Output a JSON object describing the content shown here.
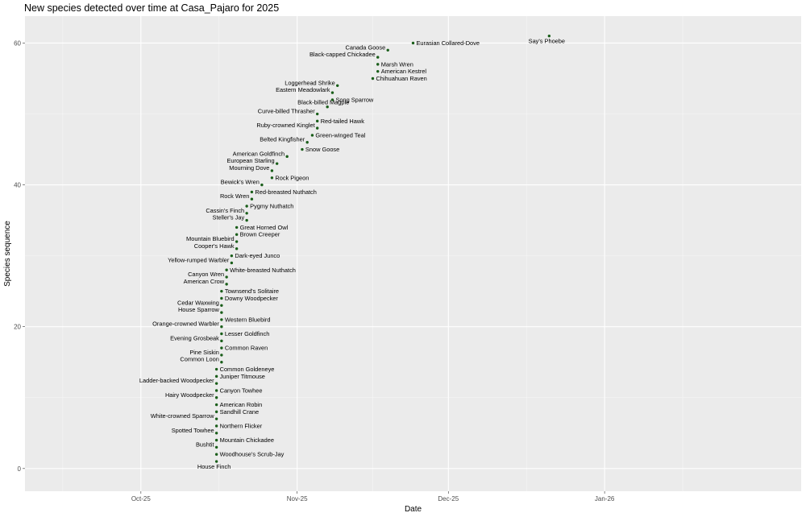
{
  "chart_data": {
    "type": "scatter",
    "title": "New species detected over time at Casa_Pajaro for 2025",
    "xlabel": "Date",
    "ylabel": "Species sequence",
    "xlim": [
      "2025-09-08",
      "2026-02-09"
    ],
    "ylim": [
      -3.2,
      63.8
    ],
    "x_tick_labels": [
      "Oct-25",
      "Nov-25",
      "Dec-25",
      "Jan-26"
    ],
    "x_tick_dates": [
      "2025-10-01",
      "2025-11-01",
      "2025-12-01",
      "2026-01-01"
    ],
    "y_ticks": [
      0,
      20,
      40,
      60
    ],
    "grid": true,
    "background": "#ebebeb",
    "point_color": "#1a5e1a",
    "points": [
      {
        "y": 1,
        "date": "2025-10-16",
        "label": "House Finch",
        "side": "below"
      },
      {
        "y": 2,
        "date": "2025-10-16",
        "label": "Woodhouse's Scrub-Jay",
        "side": "right"
      },
      {
        "y": 3,
        "date": "2025-10-16",
        "label": "Bushtit",
        "side": "left"
      },
      {
        "y": 4,
        "date": "2025-10-16",
        "label": "Mountain Chickadee",
        "side": "right"
      },
      {
        "y": 5,
        "date": "2025-10-16",
        "label": "Spotted Towhee",
        "side": "left"
      },
      {
        "y": 6,
        "date": "2025-10-16",
        "label": "Northern Flicker",
        "side": "right"
      },
      {
        "y": 7,
        "date": "2025-10-16",
        "label": "White-crowned Sparrow",
        "side": "left"
      },
      {
        "y": 8,
        "date": "2025-10-16",
        "label": "Sandhill Crane",
        "side": "right"
      },
      {
        "y": 9,
        "date": "2025-10-16",
        "label": "American Robin",
        "side": "right"
      },
      {
        "y": 10,
        "date": "2025-10-16",
        "label": "Hairy Woodpecker",
        "side": "left"
      },
      {
        "y": 11,
        "date": "2025-10-16",
        "label": "Canyon Towhee",
        "side": "right"
      },
      {
        "y": 12,
        "date": "2025-10-16",
        "label": "Ladder-backed Woodpecker",
        "side": "left"
      },
      {
        "y": 13,
        "date": "2025-10-16",
        "label": "Juniper Titmouse",
        "side": "right"
      },
      {
        "y": 14,
        "date": "2025-10-16",
        "label": "Common Goldeneye",
        "side": "right"
      },
      {
        "y": 15,
        "date": "2025-10-17",
        "label": "Common Loon",
        "side": "left"
      },
      {
        "y": 16,
        "date": "2025-10-17",
        "label": "Pine Siskin",
        "side": "left"
      },
      {
        "y": 17,
        "date": "2025-10-17",
        "label": "Common Raven",
        "side": "right"
      },
      {
        "y": 18,
        "date": "2025-10-17",
        "label": "Evening Grosbeak",
        "side": "left"
      },
      {
        "y": 19,
        "date": "2025-10-17",
        "label": "Lesser Goldfinch",
        "side": "right"
      },
      {
        "y": 20,
        "date": "2025-10-17",
        "label": "Orange-crowned Warbler",
        "side": "left"
      },
      {
        "y": 21,
        "date": "2025-10-17",
        "label": "Western Bluebird",
        "side": "right"
      },
      {
        "y": 22,
        "date": "2025-10-17",
        "label": "House Sparrow",
        "side": "left"
      },
      {
        "y": 23,
        "date": "2025-10-17",
        "label": "Cedar Waxwing",
        "side": "left"
      },
      {
        "y": 24,
        "date": "2025-10-17",
        "label": "Downy Woodpecker",
        "side": "right"
      },
      {
        "y": 25,
        "date": "2025-10-17",
        "label": "Townsend's Solitaire",
        "side": "right"
      },
      {
        "y": 26,
        "date": "2025-10-18",
        "label": "American Crow",
        "side": "left"
      },
      {
        "y": 27,
        "date": "2025-10-18",
        "label": "Canyon Wren",
        "side": "left"
      },
      {
        "y": 28,
        "date": "2025-10-18",
        "label": "White-breasted Nuthatch",
        "side": "right"
      },
      {
        "y": 29,
        "date": "2025-10-19",
        "label": "Yellow-rumped Warbler",
        "side": "left"
      },
      {
        "y": 30,
        "date": "2025-10-19",
        "label": "Dark-eyed Junco",
        "side": "right"
      },
      {
        "y": 31,
        "date": "2025-10-20",
        "label": "Cooper's Hawk",
        "side": "left"
      },
      {
        "y": 32,
        "date": "2025-10-20",
        "label": "Mountain Bluebird",
        "side": "left"
      },
      {
        "y": 33,
        "date": "2025-10-20",
        "label": "Brown Creeper",
        "side": "right"
      },
      {
        "y": 34,
        "date": "2025-10-20",
        "label": "Great Horned Owl",
        "side": "right"
      },
      {
        "y": 35,
        "date": "2025-10-22",
        "label": "Steller's Jay",
        "side": "left"
      },
      {
        "y": 36,
        "date": "2025-10-22",
        "label": "Cassin's Finch",
        "side": "left"
      },
      {
        "y": 37,
        "date": "2025-10-22",
        "label": "Pygmy Nuthatch",
        "side": "right"
      },
      {
        "y": 38,
        "date": "2025-10-23",
        "label": "Rock Wren",
        "side": "left"
      },
      {
        "y": 39,
        "date": "2025-10-23",
        "label": "Red-breasted Nuthatch",
        "side": "right"
      },
      {
        "y": 40,
        "date": "2025-10-25",
        "label": "Bewick's Wren",
        "side": "left"
      },
      {
        "y": 41,
        "date": "2025-10-27",
        "label": "Rock Pigeon",
        "side": "right"
      },
      {
        "y": 42,
        "date": "2025-10-27",
        "label": "Mourning Dove",
        "side": "left"
      },
      {
        "y": 43,
        "date": "2025-10-28",
        "label": "European Starling",
        "side": "left"
      },
      {
        "y": 44,
        "date": "2025-10-30",
        "label": "American Goldfinch",
        "side": "left"
      },
      {
        "y": 45,
        "date": "2025-11-02",
        "label": "Snow Goose",
        "side": "right"
      },
      {
        "y": 46,
        "date": "2025-11-03",
        "label": "Belted Kingfisher",
        "side": "left"
      },
      {
        "y": 47,
        "date": "2025-11-04",
        "label": "Green-winged Teal",
        "side": "right"
      },
      {
        "y": 48,
        "date": "2025-11-05",
        "label": "Ruby-crowned Kinglet",
        "side": "left"
      },
      {
        "y": 49,
        "date": "2025-11-05",
        "label": "Red-tailed Hawk",
        "side": "right"
      },
      {
        "y": 50,
        "date": "2025-11-05",
        "label": "Curve-billed Thrasher",
        "side": "left"
      },
      {
        "y": 51,
        "date": "2025-11-07",
        "label": "Black-billed Magpie",
        "side": "above"
      },
      {
        "y": 52,
        "date": "2025-11-08",
        "label": "Song Sparrow",
        "side": "right"
      },
      {
        "y": 53,
        "date": "2025-11-08",
        "label": "Eastern Meadowlark",
        "side": "left"
      },
      {
        "y": 54,
        "date": "2025-11-09",
        "label": "Loggerhead Shrike",
        "side": "left"
      },
      {
        "y": 55,
        "date": "2025-11-16",
        "label": "Chihuahuan Raven",
        "side": "right"
      },
      {
        "y": 56,
        "date": "2025-11-17",
        "label": "American Kestrel",
        "side": "right"
      },
      {
        "y": 57,
        "date": "2025-11-17",
        "label": "Marsh Wren",
        "side": "right"
      },
      {
        "y": 58,
        "date": "2025-11-17",
        "label": "Black-capped Chickadee",
        "side": "left"
      },
      {
        "y": 59,
        "date": "2025-11-19",
        "label": "Canada Goose",
        "side": "left"
      },
      {
        "y": 60,
        "date": "2025-11-24",
        "label": "Eurasian Collared-Dove",
        "side": "right"
      },
      {
        "y": 61,
        "date": "2025-12-21",
        "label": "Say's Phoebe",
        "side": "below"
      }
    ]
  }
}
